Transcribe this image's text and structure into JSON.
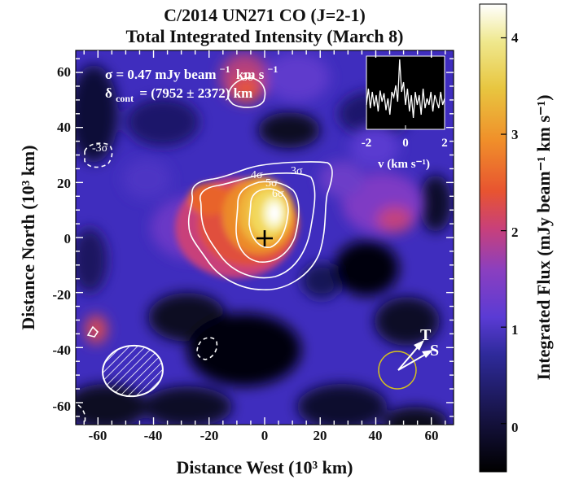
{
  "chart_data": {
    "type": "heatmap",
    "title": "C/2014 UN271 CO (J=2-1)",
    "subtitle": "Total Integrated Intensity (March 8)",
    "xlabel": "Distance West (10³ km)",
    "ylabel": "Distance North (10³ km)",
    "xlim": [
      -68,
      68
    ],
    "ylim": [
      -68,
      68
    ],
    "xticks": [
      -60,
      -40,
      -20,
      0,
      20,
      40,
      60
    ],
    "yticks": [
      -60,
      -40,
      -20,
      0,
      20,
      40,
      60
    ],
    "colorbar": {
      "label": "Integrated Flux (mJy beam⁻¹ km s⁻¹)",
      "range": [
        -0.5,
        4.35
      ],
      "ticks": [
        0,
        1,
        2,
        3,
        4
      ]
    },
    "peak": {
      "x": 3,
      "y": 8,
      "value": 4.3
    },
    "nucleus_marker": {
      "x": 0,
      "y": 0,
      "symbol": "+"
    },
    "contour_levels": [
      "3σ",
      "4σ",
      "5σ",
      "6σ",
      "-3σ"
    ],
    "annotations": {
      "sigma_prefix": "σ = 0.47 mJy beam",
      "sigma_unit": "km s",
      "delta_symbol": "δ",
      "delta_sub": "cont",
      "delta_value": "= (7952 ± 2372) km",
      "direction_T": "T",
      "direction_S": "S",
      "contour_labels": {
        "c3": "3σ",
        "c4": "4σ",
        "c5": "5σ",
        "c6": "6σ",
        "cm3": "-3σ",
        "top": "3σ"
      }
    },
    "inset_spectrum": {
      "xlabel": "v (km s⁻¹)",
      "xlim": [
        -2,
        2
      ],
      "xticks": [
        -2,
        0,
        2
      ],
      "tick_labels": [
        "-2",
        "0",
        "2"
      ],
      "velocity": [
        -2.0,
        -1.9,
        -1.8,
        -1.7,
        -1.6,
        -1.5,
        -1.4,
        -1.3,
        -1.2,
        -1.1,
        -1.0,
        -0.9,
        -0.8,
        -0.7,
        -0.6,
        -0.5,
        -0.4,
        -0.3,
        -0.2,
        -0.1,
        0.0,
        0.1,
        0.2,
        0.3,
        0.4,
        0.5,
        0.6,
        0.7,
        0.8,
        0.9,
        1.0,
        1.1,
        1.2,
        1.3,
        1.4,
        1.5,
        1.6,
        1.7,
        1.8,
        1.9,
        2.0
      ],
      "flux": [
        0.3,
        0.55,
        0.25,
        0.5,
        0.28,
        0.45,
        0.2,
        0.52,
        0.35,
        0.48,
        0.22,
        0.4,
        0.15,
        0.5,
        0.42,
        0.6,
        0.35,
        1.0,
        0.5,
        0.65,
        0.3,
        0.55,
        0.2,
        0.45,
        0.1,
        0.5,
        0.3,
        0.45,
        0.15,
        0.55,
        0.25,
        0.4,
        0.3,
        0.5,
        0.2,
        0.45,
        0.35,
        0.25,
        0.5,
        0.3,
        0.4
      ]
    },
    "colors": {
      "colormap": "CMRmap",
      "contour": "#ffffff",
      "marker": "#000000"
    }
  }
}
